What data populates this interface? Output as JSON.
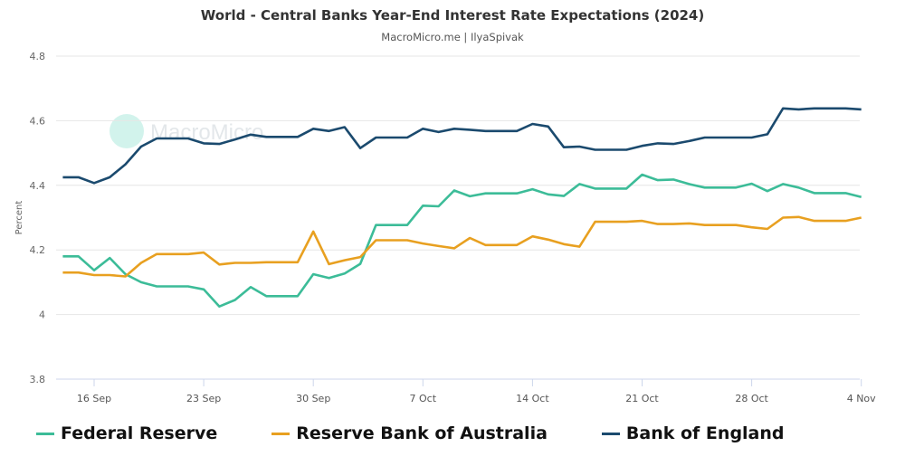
{
  "chart_data": {
    "type": "line",
    "title": "World - Central Banks Year-End Interest Rate Expectations (2024)",
    "subtitle": "MacroMicro.me | IlyaSpivak",
    "watermark": "MacroMicro",
    "ylabel": "Percent",
    "xlabel": "",
    "ylim": [
      3.8,
      4.8
    ],
    "yticks": [
      "3.8",
      "4",
      "4.2",
      "4.4",
      "4.6",
      "4.8"
    ],
    "xticks": [
      "16 Sep",
      "23 Sep",
      "30 Sep",
      "7 Oct",
      "14 Oct",
      "21 Oct",
      "28 Oct",
      "4 Nov"
    ],
    "x_start": "14 Sep",
    "x_end": "4 Nov",
    "grid": true,
    "legend_position": "bottom",
    "series": [
      {
        "name": "Federal Reserve",
        "color": "#3cbc98",
        "values": [
          4.18,
          4.18,
          4.137,
          4.175,
          4.125,
          4.1,
          4.087,
          4.087,
          4.087,
          4.078,
          4.025,
          4.045,
          4.085,
          4.057,
          4.057,
          4.057,
          4.125,
          4.113,
          4.127,
          4.157,
          4.277,
          4.277,
          4.277,
          4.337,
          4.335,
          4.384,
          4.366,
          4.375,
          4.375,
          4.375,
          4.388,
          4.372,
          4.367,
          4.404,
          4.39,
          4.39,
          4.39,
          4.433,
          4.416,
          4.418,
          4.404,
          4.393,
          4.393,
          4.393,
          4.405,
          4.382,
          4.404,
          4.393,
          4.376,
          4.376,
          4.376,
          4.364
        ]
      },
      {
        "name": "Reserve Bank of Australia",
        "color": "#e8a020",
        "values": [
          4.13,
          4.13,
          4.122,
          4.122,
          4.118,
          4.16,
          4.187,
          4.187,
          4.187,
          4.192,
          4.155,
          4.16,
          4.16,
          4.162,
          4.162,
          4.162,
          4.257,
          4.156,
          4.168,
          4.178,
          4.23,
          4.23,
          4.23,
          4.22,
          4.212,
          4.205,
          4.237,
          4.215,
          4.215,
          4.215,
          4.242,
          4.232,
          4.218,
          4.21,
          4.287,
          4.287,
          4.287,
          4.29,
          4.28,
          4.28,
          4.282,
          4.277,
          4.277,
          4.277,
          4.27,
          4.265,
          4.3,
          4.302,
          4.29,
          4.29,
          4.29,
          4.3
        ]
      },
      {
        "name": "Bank of England",
        "color": "#1b4a6e",
        "values": [
          4.425,
          4.425,
          4.407,
          4.425,
          4.465,
          4.52,
          4.545,
          4.545,
          4.545,
          4.53,
          4.528,
          4.542,
          4.557,
          4.55,
          4.55,
          4.55,
          4.575,
          4.568,
          4.58,
          4.515,
          4.548,
          4.548,
          4.548,
          4.575,
          4.565,
          4.575,
          4.572,
          4.568,
          4.568,
          4.568,
          4.59,
          4.582,
          4.518,
          4.52,
          4.51,
          4.51,
          4.51,
          4.522,
          4.53,
          4.528,
          4.537,
          4.548,
          4.548,
          4.548,
          4.548,
          4.558,
          4.638,
          4.635,
          4.638,
          4.638,
          4.638,
          4.635
        ]
      }
    ]
  }
}
